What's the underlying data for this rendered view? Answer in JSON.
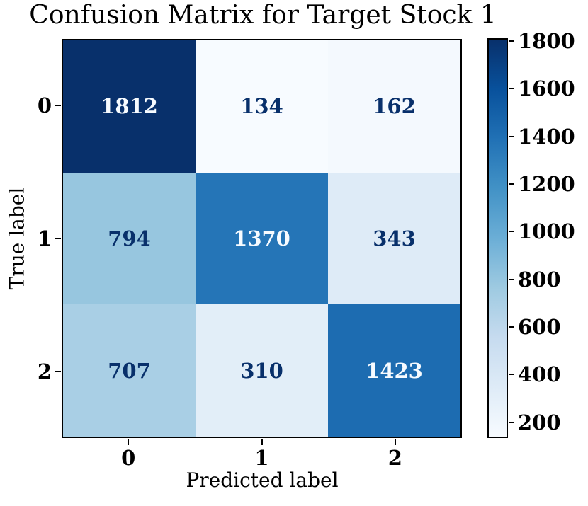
{
  "chart_data": {
    "type": "heatmap",
    "subtype": "confusion-matrix",
    "title": "Confusion Matrix for Target Stock 1",
    "xlabel": "Predicted label",
    "ylabel": "True label",
    "x_tick_labels": [
      "0",
      "1",
      "2"
    ],
    "y_tick_labels": [
      "0",
      "1",
      "2"
    ],
    "matrix": [
      [
        1812,
        134,
        162
      ],
      [
        794,
        1370,
        343
      ],
      [
        707,
        310,
        1423
      ]
    ],
    "cell_colors": [
      [
        "#08306b",
        "#f7fbff",
        "#f4f9fe"
      ],
      [
        "#97c6df",
        "#2575b7",
        "#deebf7"
      ],
      [
        "#a9cfe5",
        "#e2eef8",
        "#1d6cb1"
      ]
    ],
    "cell_text_colors": [
      [
        "#f7fbff",
        "#08306b",
        "#08306b"
      ],
      [
        "#08306b",
        "#f7fbff",
        "#08306b"
      ],
      [
        "#08306b",
        "#08306b",
        "#f7fbff"
      ]
    ],
    "colormap": "Blues",
    "grid": false,
    "legend": false,
    "colorbar": {
      "position": "right",
      "vmin": 134,
      "vmax": 1812,
      "ticks": [
        200,
        400,
        600,
        800,
        1000,
        1200,
        1400,
        1600,
        1800
      ],
      "gradient_stops": [
        "#f7fbff",
        "#deebf7",
        "#c6dbef",
        "#9ecae1",
        "#6baed6",
        "#4292c6",
        "#2171b5",
        "#08519c",
        "#08306b"
      ]
    }
  }
}
